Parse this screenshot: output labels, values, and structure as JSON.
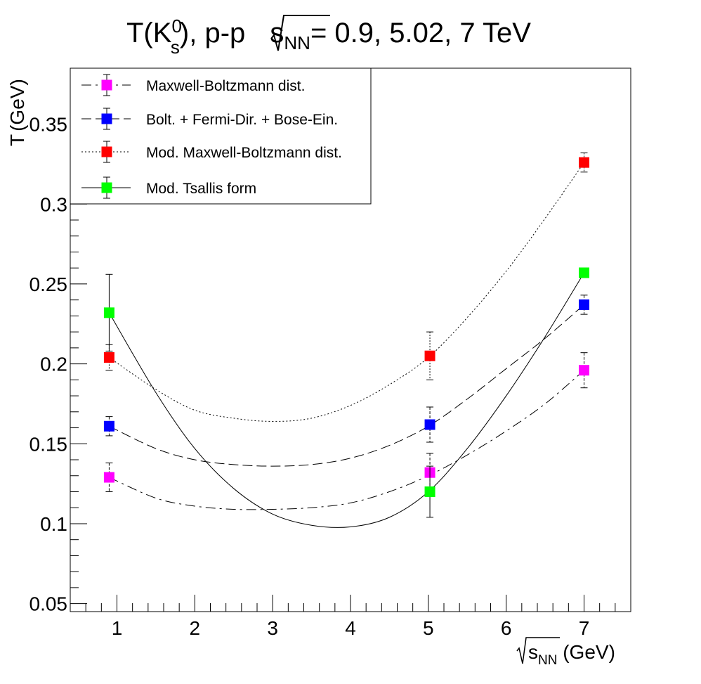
{
  "chart_data": {
    "type": "scatter",
    "title": {
      "prefix": "T(K",
      "sup": "0",
      "sub": "s",
      "middle": "), p-p ",
      "sqrt_label": "s",
      "sqrt_sub": "NN",
      "suffix": "= 0.9, 5.02, 7 TeV"
    },
    "xlabel": {
      "sqrt_label": "s",
      "sqrt_sub": "NN",
      "unit": " (GeV)"
    },
    "ylabel": {
      "main": "T",
      "unit": "(GeV)"
    },
    "xlim": [
      0.4,
      7.6
    ],
    "ylim": [
      0.045,
      0.385
    ],
    "x_ticks": [
      1,
      2,
      3,
      4,
      5,
      6,
      7
    ],
    "x_tick_labels": [
      "1",
      "2",
      "3",
      "4",
      "5",
      "6",
      "7"
    ],
    "y_ticks": [
      0.05,
      0.1,
      0.15,
      0.2,
      0.25,
      0.3,
      0.35
    ],
    "y_tick_labels": [
      "0.05",
      "0.1",
      "0.15",
      "0.2",
      "0.25",
      "0.3",
      "0.35"
    ],
    "grid": false,
    "legend_position": "top-left",
    "series": [
      {
        "name": "Maxwell-Boltzmann dist.",
        "color": "#ff00ff",
        "line_style": "dash-dot",
        "x": [
          0.9,
          5.02,
          7
        ],
        "y": [
          0.129,
          0.132,
          0.196
        ],
        "yerr": [
          0.009,
          0.012,
          0.011
        ],
        "fit_curve": {
          "x": [
            0.9,
            1.5,
            2.0,
            2.5,
            3.0,
            3.5,
            4.0,
            4.5,
            5.0,
            5.5,
            6.0,
            6.5,
            7.0
          ],
          "y": [
            0.129,
            0.116,
            0.111,
            0.109,
            0.109,
            0.11,
            0.113,
            0.12,
            0.13,
            0.143,
            0.158,
            0.175,
            0.196
          ]
        }
      },
      {
        "name": "Bolt. + Fermi-Dir. + Bose-Ein.",
        "color": "#0000ff",
        "line_style": "long-dash",
        "x": [
          0.9,
          5.02,
          7
        ],
        "y": [
          0.161,
          0.162,
          0.237
        ],
        "yerr": [
          0.006,
          0.011,
          0.006
        ],
        "fit_curve": {
          "x": [
            0.9,
            1.5,
            2.0,
            2.5,
            3.0,
            3.5,
            4.0,
            4.5,
            5.0,
            5.5,
            6.0,
            6.5,
            7.0
          ],
          "y": [
            0.161,
            0.147,
            0.14,
            0.137,
            0.136,
            0.137,
            0.141,
            0.149,
            0.161,
            0.178,
            0.197,
            0.216,
            0.237
          ]
        }
      },
      {
        "name": "Mod. Maxwell-Boltzmann dist.",
        "color": "#ff0000",
        "line_style": "dotted",
        "x": [
          0.9,
          5.02,
          7
        ],
        "y": [
          0.204,
          0.205,
          0.326
        ],
        "yerr": [
          0.008,
          0.015,
          0.006
        ],
        "fit_curve": {
          "x": [
            0.9,
            1.5,
            2.0,
            2.5,
            3.0,
            3.5,
            4.0,
            4.5,
            5.0,
            5.5,
            6.0,
            6.5,
            7.0
          ],
          "y": [
            0.204,
            0.184,
            0.171,
            0.166,
            0.164,
            0.166,
            0.174,
            0.187,
            0.204,
            0.229,
            0.258,
            0.291,
            0.326
          ]
        }
      },
      {
        "name": "Mod. Tsallis form",
        "color": "#00ff00",
        "line_style": "solid",
        "x": [
          0.9,
          5.02,
          7
        ],
        "y": [
          0.232,
          0.12,
          0.257
        ],
        "yerr": [
          0.024,
          0.016,
          0.003
        ],
        "fit_curve": {
          "x": [
            0.9,
            1.5,
            2.0,
            2.5,
            3.0,
            3.5,
            4.0,
            4.5,
            5.0,
            5.5,
            6.0,
            6.5,
            7.0
          ],
          "y": [
            0.232,
            0.182,
            0.147,
            0.122,
            0.106,
            0.099,
            0.098,
            0.104,
            0.12,
            0.147,
            0.18,
            0.217,
            0.257
          ]
        }
      }
    ]
  }
}
